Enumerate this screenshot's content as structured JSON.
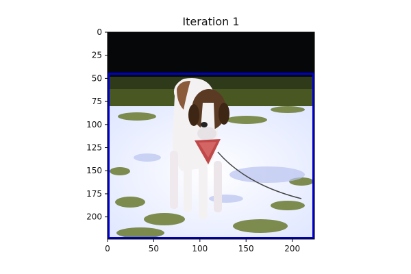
{
  "figure": {
    "title": "Iteration 1"
  },
  "image": {
    "description_icon": "photo",
    "x_range": [
      0,
      224
    ],
    "y_range": [
      0,
      224
    ],
    "x_ticks": [
      0,
      50,
      100,
      150,
      200
    ],
    "y_ticks": [
      0,
      25,
      50,
      75,
      100,
      125,
      150,
      175,
      200
    ],
    "bounding_box": {
      "x0": 0,
      "y0": 45,
      "x1": 224,
      "y1": 224,
      "color": "#0000cc"
    }
  },
  "colors": {
    "sky": "#06090c",
    "snow": "#eef2ff",
    "grass": "#6a7a30",
    "dog_white": "#f4f1f3",
    "dog_brown": "#5a3a22",
    "bandana": "#c04848"
  }
}
